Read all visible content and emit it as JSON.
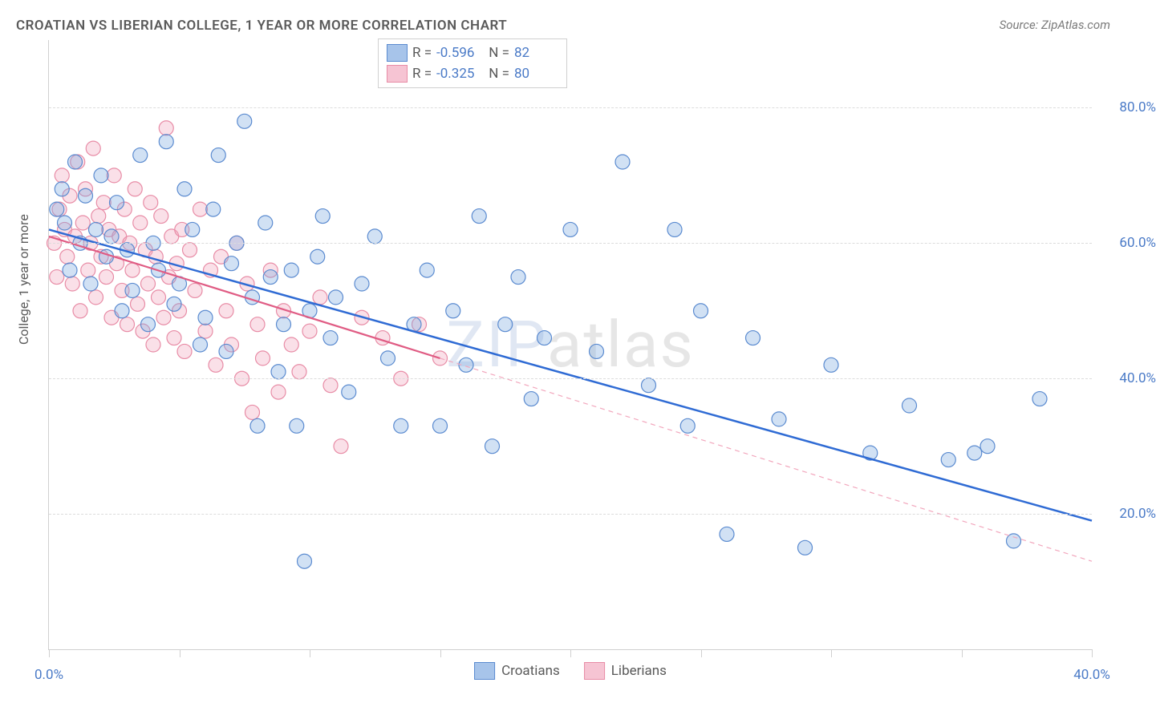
{
  "title": "CROATIAN VS LIBERIAN COLLEGE, 1 YEAR OR MORE CORRELATION CHART",
  "source_label": "Source: ZipAtlas.com",
  "watermark": {
    "left": "ZIP",
    "right": "atlas"
  },
  "chart": {
    "type": "scatter",
    "y_axis_label": "College, 1 year or more",
    "xlim": [
      0,
      40
    ],
    "ylim": [
      0,
      90
    ],
    "x_ticks": [
      0,
      5,
      10,
      15,
      20,
      25,
      30,
      35,
      40
    ],
    "x_tick_labels": {
      "0": "0.0%",
      "40": "40.0%"
    },
    "y_ticks": [
      20,
      40,
      60,
      80
    ],
    "y_tick_labels": {
      "20": "20.0%",
      "40": "40.0%",
      "60": "60.0%",
      "80": "80.0%"
    },
    "grid_color": "#dcdcdc",
    "axis_color": "#d0d0d0",
    "background_color": "#ffffff",
    "marker_radius": 9,
    "marker_fill_opacity": 0.35,
    "marker_stroke_width": 1.2,
    "series": [
      {
        "name": "Croatians",
        "color": "#7aa8e0",
        "stroke": "#5b8bd0",
        "R": "-0.596",
        "N": "82",
        "trend": {
          "x1": 0,
          "y1": 62,
          "x2": 40,
          "y2": 19,
          "color": "#2f6bd4",
          "width": 2.5,
          "dash": ""
        },
        "points": [
          [
            0.3,
            65
          ],
          [
            0.5,
            68
          ],
          [
            0.6,
            63
          ],
          [
            0.8,
            56
          ],
          [
            1.0,
            72
          ],
          [
            1.2,
            60
          ],
          [
            1.4,
            67
          ],
          [
            1.6,
            54
          ],
          [
            1.8,
            62
          ],
          [
            2.0,
            70
          ],
          [
            2.2,
            58
          ],
          [
            2.4,
            61
          ],
          [
            2.6,
            66
          ],
          [
            2.8,
            50
          ],
          [
            3.0,
            59
          ],
          [
            3.2,
            53
          ],
          [
            3.5,
            73
          ],
          [
            3.8,
            48
          ],
          [
            4.0,
            60
          ],
          [
            4.2,
            56
          ],
          [
            4.5,
            75
          ],
          [
            4.8,
            51
          ],
          [
            5.0,
            54
          ],
          [
            5.2,
            68
          ],
          [
            5.5,
            62
          ],
          [
            5.8,
            45
          ],
          [
            6.0,
            49
          ],
          [
            6.3,
            65
          ],
          [
            6.5,
            73
          ],
          [
            6.8,
            44
          ],
          [
            7.0,
            57
          ],
          [
            7.2,
            60
          ],
          [
            7.5,
            78
          ],
          [
            7.8,
            52
          ],
          [
            8.0,
            33
          ],
          [
            8.3,
            63
          ],
          [
            8.5,
            55
          ],
          [
            8.8,
            41
          ],
          [
            9.0,
            48
          ],
          [
            9.3,
            56
          ],
          [
            9.5,
            33
          ],
          [
            9.8,
            13
          ],
          [
            10.0,
            50
          ],
          [
            10.3,
            58
          ],
          [
            10.5,
            64
          ],
          [
            10.8,
            46
          ],
          [
            11.0,
            52
          ],
          [
            11.5,
            38
          ],
          [
            12.0,
            54
          ],
          [
            12.5,
            61
          ],
          [
            13.0,
            43
          ],
          [
            13.5,
            33
          ],
          [
            14.0,
            48
          ],
          [
            14.5,
            56
          ],
          [
            15.0,
            33
          ],
          [
            15.5,
            50
          ],
          [
            16.0,
            42
          ],
          [
            16.5,
            64
          ],
          [
            17.0,
            30
          ],
          [
            17.5,
            48
          ],
          [
            18.0,
            55
          ],
          [
            18.5,
            37
          ],
          [
            19.0,
            46
          ],
          [
            20.0,
            62
          ],
          [
            21.0,
            44
          ],
          [
            22.0,
            72
          ],
          [
            23.0,
            39
          ],
          [
            24.0,
            62
          ],
          [
            24.5,
            33
          ],
          [
            25.0,
            50
          ],
          [
            26.0,
            17
          ],
          [
            27.0,
            46
          ],
          [
            28.0,
            34
          ],
          [
            29.0,
            15
          ],
          [
            30.0,
            42
          ],
          [
            31.5,
            29
          ],
          [
            33.0,
            36
          ],
          [
            34.5,
            28
          ],
          [
            35.5,
            29
          ],
          [
            37.0,
            16
          ],
          [
            36.0,
            30
          ],
          [
            38.0,
            37
          ]
        ]
      },
      {
        "name": "Liberians",
        "color": "#f2a7bd",
        "stroke": "#e88ca6",
        "R": "-0.325",
        "N": "80",
        "trend": {
          "x1": 0,
          "y1": 61,
          "x2": 15,
          "y2": 43,
          "color": "#e05c84",
          "width": 2.2,
          "dash": ""
        },
        "trend_ext": {
          "x1": 15,
          "y1": 43,
          "x2": 40,
          "y2": 13,
          "color": "#f2a7bd",
          "width": 1.2,
          "dash": "6,5"
        },
        "points": [
          [
            0.2,
            60
          ],
          [
            0.3,
            55
          ],
          [
            0.4,
            65
          ],
          [
            0.5,
            70
          ],
          [
            0.6,
            62
          ],
          [
            0.7,
            58
          ],
          [
            0.8,
            67
          ],
          [
            0.9,
            54
          ],
          [
            1.0,
            61
          ],
          [
            1.1,
            72
          ],
          [
            1.2,
            50
          ],
          [
            1.3,
            63
          ],
          [
            1.4,
            68
          ],
          [
            1.5,
            56
          ],
          [
            1.6,
            60
          ],
          [
            1.7,
            74
          ],
          [
            1.8,
            52
          ],
          [
            1.9,
            64
          ],
          [
            2.0,
            58
          ],
          [
            2.1,
            66
          ],
          [
            2.2,
            55
          ],
          [
            2.3,
            62
          ],
          [
            2.4,
            49
          ],
          [
            2.5,
            70
          ],
          [
            2.6,
            57
          ],
          [
            2.7,
            61
          ],
          [
            2.8,
            53
          ],
          [
            2.9,
            65
          ],
          [
            3.0,
            48
          ],
          [
            3.1,
            60
          ],
          [
            3.2,
            56
          ],
          [
            3.3,
            68
          ],
          [
            3.4,
            51
          ],
          [
            3.5,
            63
          ],
          [
            3.6,
            47
          ],
          [
            3.7,
            59
          ],
          [
            3.8,
            54
          ],
          [
            3.9,
            66
          ],
          [
            4.0,
            45
          ],
          [
            4.1,
            58
          ],
          [
            4.2,
            52
          ],
          [
            4.3,
            64
          ],
          [
            4.4,
            49
          ],
          [
            4.5,
            77
          ],
          [
            4.6,
            55
          ],
          [
            4.7,
            61
          ],
          [
            4.8,
            46
          ],
          [
            4.9,
            57
          ],
          [
            5.0,
            50
          ],
          [
            5.1,
            62
          ],
          [
            5.2,
            44
          ],
          [
            5.4,
            59
          ],
          [
            5.6,
            53
          ],
          [
            5.8,
            65
          ],
          [
            6.0,
            47
          ],
          [
            6.2,
            56
          ],
          [
            6.4,
            42
          ],
          [
            6.6,
            58
          ],
          [
            6.8,
            50
          ],
          [
            7.0,
            45
          ],
          [
            7.2,
            60
          ],
          [
            7.4,
            40
          ],
          [
            7.6,
            54
          ],
          [
            7.8,
            35
          ],
          [
            8.0,
            48
          ],
          [
            8.2,
            43
          ],
          [
            8.5,
            56
          ],
          [
            8.8,
            38
          ],
          [
            9.0,
            50
          ],
          [
            9.3,
            45
          ],
          [
            9.6,
            41
          ],
          [
            10.0,
            47
          ],
          [
            10.4,
            52
          ],
          [
            10.8,
            39
          ],
          [
            11.2,
            30
          ],
          [
            12.0,
            49
          ],
          [
            12.8,
            46
          ],
          [
            13.5,
            40
          ],
          [
            14.2,
            48
          ],
          [
            15.0,
            43
          ]
        ]
      }
    ],
    "bottom_legend": [
      {
        "label": "Croatians",
        "fill": "#a7c4ea",
        "stroke": "#5b8bd0"
      },
      {
        "label": "Liberians",
        "fill": "#f6c4d3",
        "stroke": "#e88ca6"
      }
    ]
  }
}
